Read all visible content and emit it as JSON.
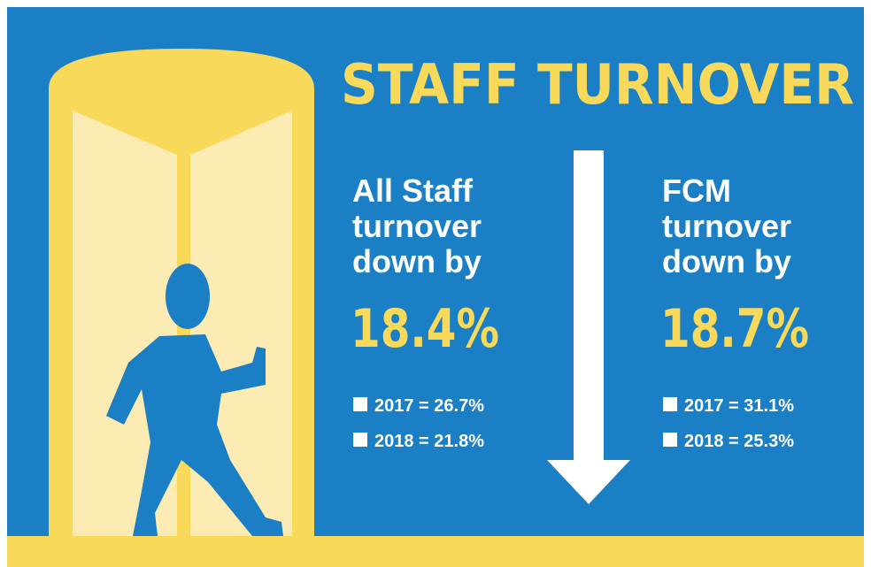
{
  "title": "STAFF TURNOVER",
  "panels": [
    {
      "heading_lines": [
        "All Staff",
        "turnover",
        "down by"
      ],
      "figure": "18.4%",
      "bullets": [
        "2017 = 26.7%",
        "2018 = 21.8%"
      ]
    },
    {
      "heading_lines": [
        "FCM",
        "turnover",
        "down by"
      ],
      "figure": "18.7%",
      "bullets": [
        "2017 = 31.1%",
        "2018 = 25.3%"
      ]
    }
  ]
}
